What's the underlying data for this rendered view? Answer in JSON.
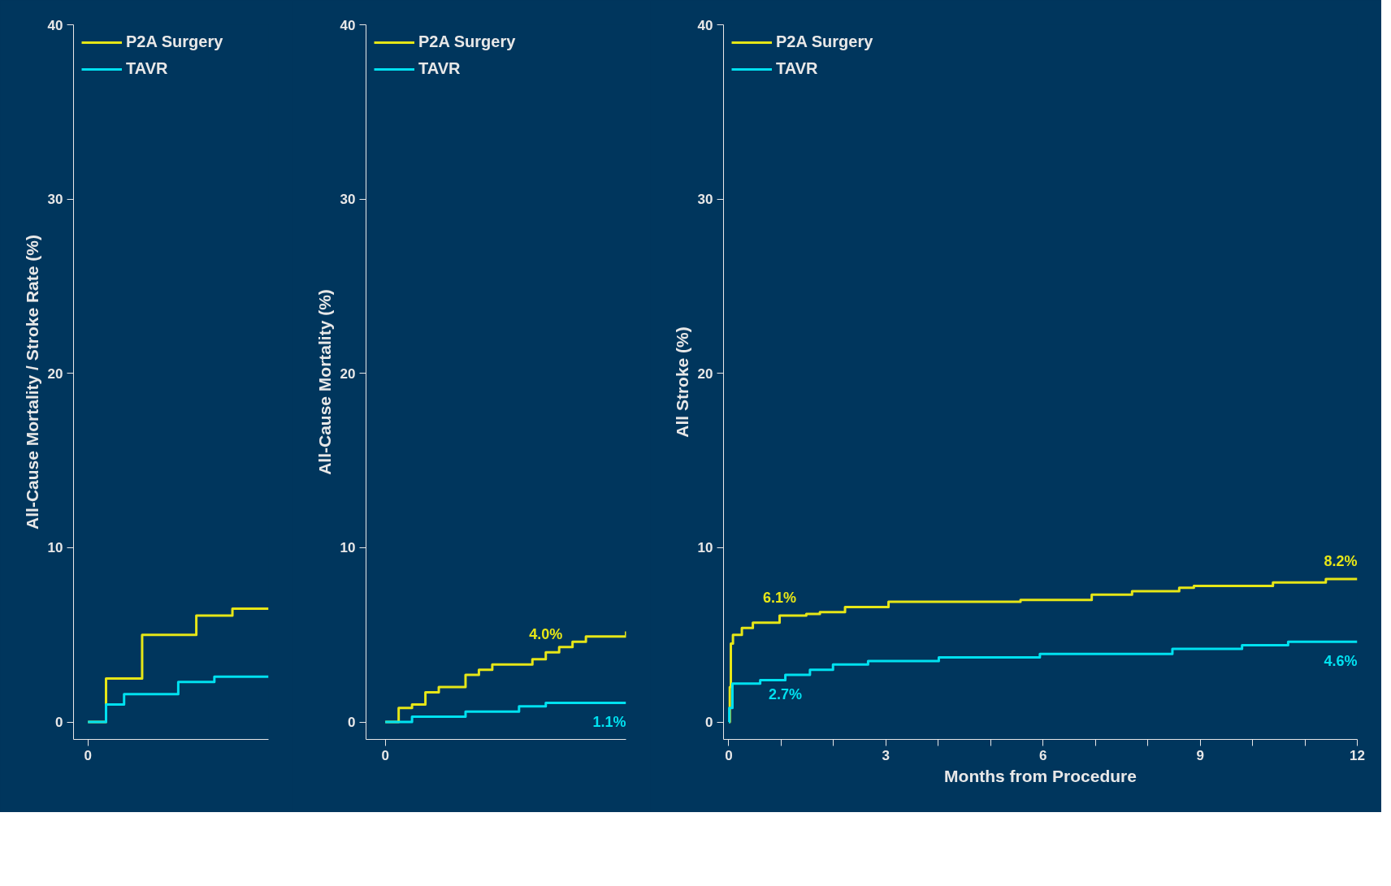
{
  "chart_data": [
    {
      "type": "step",
      "ylabel": "All-Cause Mortality / Stroke Rate (%)",
      "categories": [
        "0",
        null,
        null,
        null,
        null,
        null,
        null,
        null,
        null,
        null,
        null
      ],
      "ylim": [
        -1,
        40
      ],
      "yticks": [
        0,
        10,
        20,
        30,
        40
      ],
      "grid": false,
      "legend": "top left",
      "line_style": "solid",
      "marker": "none",
      "series": [
        {
          "name": "P2A Surgery",
          "color": "#e6e617",
          "values": [
            0,
            2.5,
            2.5,
            5.0,
            5.0,
            5.0,
            6.1,
            6.1,
            6.5,
            6.5,
            6.5
          ]
        },
        {
          "name": "TAVR",
          "color": "#00e1f0",
          "values": [
            0,
            1.0,
            1.6,
            1.6,
            1.6,
            2.3,
            2.3,
            2.6,
            2.6,
            2.6,
            2.6
          ]
        }
      ]
    },
    {
      "type": "step",
      "ylabel": "All-Cause Mortality (%)",
      "categories": [
        "0",
        null,
        null,
        null,
        null,
        null,
        null,
        null,
        null,
        null,
        null,
        null,
        null,
        null,
        null,
        null,
        null,
        null,
        null
      ],
      "ylim": [
        -1,
        40
      ],
      "yticks": [
        0,
        10,
        20,
        30,
        40
      ],
      "grid": false,
      "legend": "top left",
      "line_style": "solid",
      "marker": "none",
      "annotations": [
        {
          "text": "4.0%",
          "y": 4.0
        },
        {
          "text": "1.1%",
          "y": 1.1
        }
      ],
      "series": [
        {
          "name": "P2A Surgery",
          "color": "#e6e617",
          "values": [
            0,
            0.8,
            1.0,
            1.7,
            2.0,
            2.0,
            2.7,
            3.0,
            3.3,
            3.3,
            3.3,
            3.6,
            4.0,
            4.3,
            4.6,
            4.9,
            4.9,
            4.9,
            5.2
          ]
        },
        {
          "name": "TAVR",
          "color": "#00e1f0",
          "values": [
            0,
            0,
            0.3,
            0.3,
            0.3,
            0.3,
            0.6,
            0.6,
            0.6,
            0.6,
            0.9,
            0.9,
            1.1,
            1.1,
            1.1,
            1.1,
            1.1,
            1.1,
            1.1
          ]
        }
      ]
    },
    {
      "type": "step",
      "ylabel": "All Stroke (%)",
      "xlabel": "Months from Procedure",
      "xlim": [
        -0.1,
        12
      ],
      "xticks": [
        0,
        {
          "value": 1,
          "label": null
        },
        {
          "value": 2,
          "label": null
        },
        3,
        {
          "value": 4,
          "label": null
        },
        {
          "value": 5,
          "label": null
        },
        6,
        {
          "value": 7,
          "label": null
        },
        {
          "value": 8,
          "label": null
        },
        9,
        {
          "value": 10,
          "label": null
        },
        {
          "value": 11,
          "label": null
        },
        12
      ],
      "ylim": [
        -1,
        40
      ],
      "yticks": [
        0,
        10,
        20,
        30,
        40
      ],
      "grid": false,
      "legend": "top left",
      "line_style": "solid",
      "marker": "none",
      "annotations": [
        {
          "text": "6.1%",
          "x": 0.97,
          "y": 6.1
        },
        {
          "text": "8.2%",
          "x": 12.0,
          "y": 8.2
        },
        {
          "text": "2.7%",
          "x": 1.08,
          "y": 2.7
        },
        {
          "text": "4.6%",
          "x": 12.0,
          "y": 4.6
        }
      ],
      "series": [
        {
          "name": "P2A Surgery",
          "color": "#e6e617",
          "x": [
            0,
            0.02,
            0.04,
            0.08,
            0.25,
            0.46,
            0.97,
            1.48,
            1.74,
            2.22,
            3.05,
            5.57,
            6.93,
            7.7,
            8.6,
            8.88,
            10.39,
            11.4,
            12.0
          ],
          "values": [
            0,
            2.0,
            4.5,
            5.0,
            5.4,
            5.7,
            6.1,
            6.2,
            6.3,
            6.6,
            6.9,
            7.0,
            7.3,
            7.5,
            7.7,
            7.8,
            8.0,
            8.2,
            8.2
          ]
        },
        {
          "name": "TAVR",
          "color": "#00e1f0",
          "x": [
            0,
            0.01,
            0.07,
            0.6,
            1.08,
            1.55,
            1.99,
            2.66,
            4.01,
            5.94,
            8.47,
            9.8,
            10.68,
            12.0
          ],
          "values": [
            0,
            0.8,
            2.2,
            2.4,
            2.7,
            3.0,
            3.3,
            3.5,
            3.7,
            3.9,
            4.2,
            4.4,
            4.6,
            4.6
          ]
        }
      ]
    }
  ]
}
